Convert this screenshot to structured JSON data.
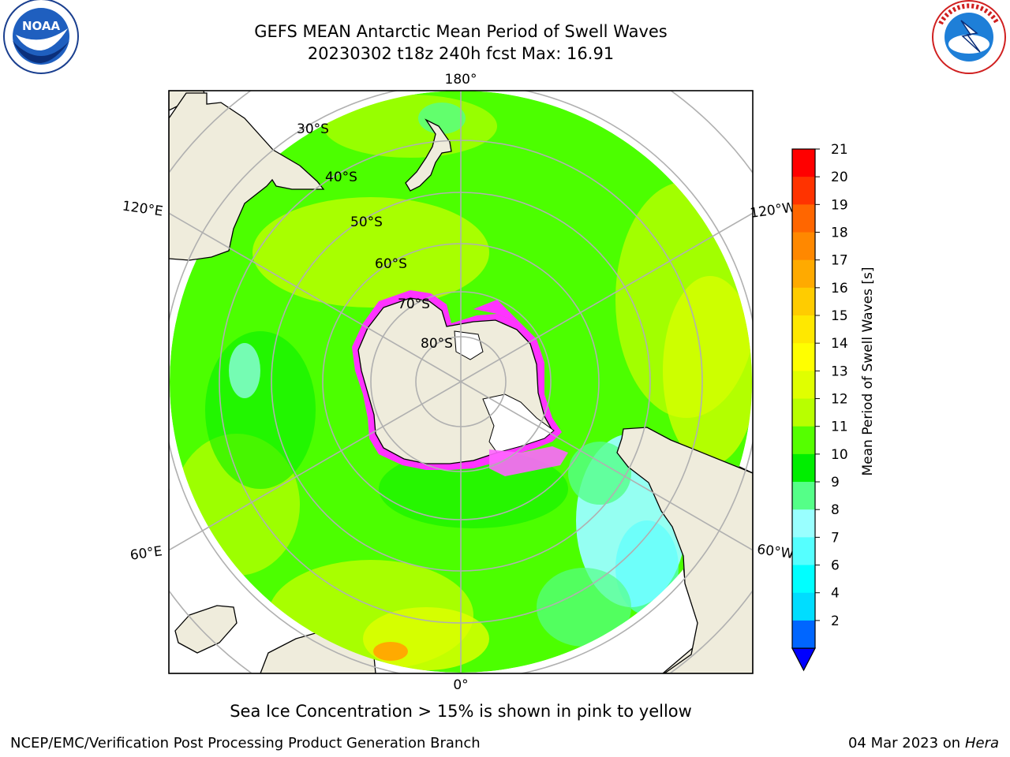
{
  "header": {
    "title_line1": "GEFS MEAN Antarctic Mean Period of Swell Waves",
    "title_line2": "20230302 t18z 240h fcst   Max: 16.91"
  },
  "logos": {
    "left": "noaa-logo",
    "right": "national-weather-service-logo"
  },
  "map": {
    "projection": "south-polar-stereographic",
    "longitude_labels": [
      "180°",
      "120°E",
      "120°W",
      "60°E",
      "60°W",
      "0°"
    ],
    "latitude_labels": [
      "30°S",
      "40°S",
      "50°S",
      "60°S",
      "70°S",
      "80°S"
    ],
    "land_color": "#efecdc",
    "ocean_default_color": "#4cff00",
    "sea_ice_color": "#ff33ff"
  },
  "colorbar": {
    "label": "Mean Period of Swell Waves [s]",
    "ticks": [
      "21",
      "20",
      "19",
      "18",
      "17",
      "16",
      "15",
      "14",
      "13",
      "12",
      "11",
      "10",
      "9",
      "8",
      "7",
      "6",
      "4",
      "2"
    ],
    "colors": [
      "#ff0000",
      "#ff3300",
      "#ff6600",
      "#ff8800",
      "#ffaa00",
      "#ffcc00",
      "#ffe800",
      "#ffff00",
      "#e0ff00",
      "#b8ff00",
      "#55ff00",
      "#00ee00",
      "#55ff88",
      "#99ffff",
      "#55ffff",
      "#00ffff",
      "#00ddff",
      "#0066ff"
    ],
    "extend_color": "#0000ff"
  },
  "footer": {
    "note": "Sea Ice Concentration > 15% is shown in pink to yellow",
    "left": "NCEP/EMC/Verification Post Processing Product Generation Branch",
    "right_date": "04 Mar 2023 on",
    "right_host": "Hera"
  }
}
